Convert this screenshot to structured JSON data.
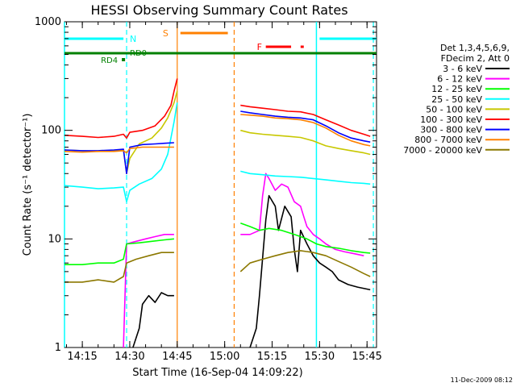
{
  "chart_data": {
    "type": "line",
    "title": "HESSI Observing Summary Count Rates",
    "xlabel": "Start Time (16-Sep-04 14:09:22)",
    "ylabel": "Count Rate (s⁻¹ detector⁻¹)",
    "y_scale": "log",
    "ylim": [
      1,
      1000
    ],
    "xlim_minutes": [
      "14:09:22",
      "15:48:00"
    ],
    "x_ticks": [
      "14:15",
      "14:30",
      "14:45",
      "15:00",
      "15:15",
      "15:30",
      "15:45"
    ],
    "y_ticks": [
      "1",
      "10",
      "100",
      "1000"
    ],
    "grid": false,
    "legend_position": "right",
    "legend_header": [
      "Det 1,3,4,5,6,9,",
      "FDecim 2, Att 0"
    ],
    "timestamp": "11-Dec-2009 08:12",
    "flags": {
      "N": {
        "label": "N",
        "color": "#00ffff"
      },
      "S": {
        "label": "S",
        "color": "#ff8000",
        "start": "14:46",
        "end": "15:01"
      },
      "F": {
        "label": "F",
        "color": "#ff0000"
      },
      "RD4": {
        "label": "RD4",
        "color": "#008000"
      },
      "RD0": {
        "label": "RD0",
        "color": "#008000"
      }
    },
    "series": [
      {
        "name": "3 - 6 keV",
        "color": "#000000",
        "points": [
          [
            "14:31",
            1
          ],
          [
            "14:33",
            1.5
          ],
          [
            "14:34",
            2.5
          ],
          [
            "14:36",
            3
          ],
          [
            "14:38",
            2.6
          ],
          [
            "14:40",
            3.2
          ],
          [
            "14:42",
            3
          ],
          [
            "14:44",
            3
          ],
          null,
          [
            "15:08",
            1
          ],
          [
            "15:10",
            1.5
          ],
          [
            "15:11",
            3
          ],
          [
            "15:13",
            15
          ],
          [
            "15:14",
            25
          ],
          [
            "15:16",
            20
          ],
          [
            "15:17",
            12
          ],
          [
            "15:19",
            20
          ],
          [
            "15:21",
            16
          ],
          [
            "15:22",
            8
          ],
          [
            "15:23",
            5
          ],
          [
            "15:24",
            12
          ],
          [
            "15:26",
            9
          ],
          [
            "15:28",
            7
          ],
          [
            "15:30",
            6
          ],
          [
            "15:32",
            5.5
          ],
          [
            "15:34",
            5
          ],
          [
            "15:36",
            4.2
          ],
          [
            "15:39",
            3.8
          ],
          [
            "15:42",
            3.6
          ],
          [
            "15:46",
            3.4
          ]
        ]
      },
      {
        "name": "6 - 12 keV",
        "color": "#ff00ff",
        "points": [
          [
            "14:28",
            1
          ],
          [
            "14:29",
            9
          ],
          [
            "14:32",
            9.5
          ],
          [
            "14:35",
            10
          ],
          [
            "14:38",
            10.5
          ],
          [
            "14:41",
            11
          ],
          [
            "14:44",
            11
          ],
          null,
          [
            "15:05",
            11
          ],
          [
            "15:08",
            11
          ],
          [
            "15:11",
            12
          ],
          [
            "15:12",
            25
          ],
          [
            "15:13",
            40
          ],
          [
            "15:14",
            36
          ],
          [
            "15:16",
            28
          ],
          [
            "15:18",
            32
          ],
          [
            "15:20",
            30
          ],
          [
            "15:22",
            22
          ],
          [
            "15:24",
            20
          ],
          [
            "15:25",
            16
          ],
          [
            "15:26",
            13
          ],
          [
            "15:28",
            11
          ],
          [
            "15:30",
            10
          ],
          [
            "15:32",
            9
          ],
          [
            "15:35",
            8
          ],
          [
            "15:38",
            7.6
          ],
          [
            "15:41",
            7.3
          ],
          [
            "15:44",
            7
          ]
        ]
      },
      {
        "name": "12 - 25 keV",
        "color": "#00ff00",
        "points": [
          [
            "14:09:22",
            5.8
          ],
          [
            "14:15",
            5.8
          ],
          [
            "14:20",
            6
          ],
          [
            "14:25",
            6
          ],
          [
            "14:28",
            6.5
          ],
          [
            "14:29",
            9
          ],
          [
            "14:33",
            9.2
          ],
          [
            "14:37",
            9.5
          ],
          [
            "14:41",
            9.8
          ],
          [
            "14:44",
            10
          ],
          null,
          [
            "15:05",
            14
          ],
          [
            "15:08",
            13
          ],
          [
            "15:11",
            12
          ],
          [
            "15:14",
            12.5
          ],
          [
            "15:18",
            12
          ],
          [
            "15:22",
            11
          ],
          [
            "15:26",
            10
          ],
          [
            "15:29",
            9
          ],
          [
            "15:32",
            8.5
          ],
          [
            "15:36",
            8.2
          ],
          [
            "15:40",
            7.8
          ],
          [
            "15:44",
            7.5
          ],
          [
            "15:46",
            7.4
          ]
        ]
      },
      {
        "name": "25 - 50 keV",
        "color": "#00ffff",
        "points": [
          [
            "14:09:22",
            31
          ],
          [
            "14:15",
            30
          ],
          [
            "14:20",
            29
          ],
          [
            "14:25",
            29.5
          ],
          [
            "14:28",
            30
          ],
          [
            "14:29",
            22
          ],
          [
            "14:30",
            28
          ],
          [
            "14:33",
            32
          ],
          [
            "14:37",
            36
          ],
          [
            "14:40",
            44
          ],
          [
            "14:42",
            60
          ],
          [
            "14:43",
            85
          ],
          [
            "14:44",
            120
          ],
          [
            "14:45",
            180
          ],
          null,
          [
            "15:05",
            42
          ],
          [
            "15:08",
            40
          ],
          [
            "15:12",
            39
          ],
          [
            "15:16",
            38
          ],
          [
            "15:20",
            37.5
          ],
          [
            "15:24",
            37
          ],
          [
            "15:28",
            36
          ],
          [
            "15:32",
            35
          ],
          [
            "15:36",
            34
          ],
          [
            "15:40",
            33
          ],
          [
            "15:44",
            32.5
          ],
          [
            "15:46",
            32
          ]
        ]
      },
      {
        "name": "50 - 100 keV",
        "color": "#c8c800",
        "points": [
          [
            "14:09:22",
            66
          ],
          [
            "14:15",
            65
          ],
          [
            "14:20",
            64
          ],
          [
            "14:25",
            65
          ],
          [
            "14:28",
            66
          ],
          [
            "14:29",
            40
          ],
          [
            "14:30",
            55
          ],
          [
            "14:33",
            75
          ],
          [
            "14:37",
            85
          ],
          [
            "14:40",
            105
          ],
          [
            "14:42",
            130
          ],
          [
            "14:44",
            180
          ],
          [
            "14:45",
            230
          ],
          null,
          [
            "15:05",
            100
          ],
          [
            "15:08",
            95
          ],
          [
            "15:12",
            92
          ],
          [
            "15:16",
            90
          ],
          [
            "15:20",
            88
          ],
          [
            "15:24",
            86
          ],
          [
            "15:28",
            80
          ],
          [
            "15:32",
            72
          ],
          [
            "15:36",
            68
          ],
          [
            "15:40",
            65
          ],
          [
            "15:44",
            62
          ],
          [
            "15:46",
            60
          ]
        ]
      },
      {
        "name": "100 - 300 keV",
        "color": "#ff0000",
        "points": [
          [
            "14:09:22",
            90
          ],
          [
            "14:15",
            88
          ],
          [
            "14:20",
            86
          ],
          [
            "14:25",
            88
          ],
          [
            "14:28",
            92
          ],
          [
            "14:29",
            85
          ],
          [
            "14:30",
            96
          ],
          [
            "14:34",
            100
          ],
          [
            "14:38",
            110
          ],
          [
            "14:41",
            135
          ],
          [
            "14:43",
            170
          ],
          [
            "14:44",
            230
          ],
          [
            "14:45",
            300
          ],
          null,
          [
            "15:05",
            170
          ],
          [
            "15:08",
            165
          ],
          [
            "15:12",
            160
          ],
          [
            "15:16",
            155
          ],
          [
            "15:20",
            150
          ],
          [
            "15:24",
            148
          ],
          [
            "15:28",
            140
          ],
          [
            "15:32",
            125
          ],
          [
            "15:36",
            112
          ],
          [
            "15:40",
            100
          ],
          [
            "15:44",
            92
          ],
          [
            "15:46",
            88
          ]
        ]
      },
      {
        "name": "300 - 800 keV",
        "color": "#0000ff",
        "points": [
          [
            "14:09:22",
            66
          ],
          [
            "14:15",
            65
          ],
          [
            "14:20",
            65
          ],
          [
            "14:25",
            66
          ],
          [
            "14:28",
            67
          ],
          [
            "14:29",
            40
          ],
          [
            "14:30",
            70
          ],
          [
            "14:34",
            74
          ],
          [
            "14:38",
            75
          ],
          [
            "14:41",
            76
          ],
          [
            "14:44",
            77
          ],
          null,
          [
            "15:05",
            150
          ],
          [
            "15:08",
            145
          ],
          [
            "15:12",
            140
          ],
          [
            "15:16",
            135
          ],
          [
            "15:20",
            132
          ],
          [
            "15:24",
            130
          ],
          [
            "15:28",
            125
          ],
          [
            "15:32",
            110
          ],
          [
            "15:36",
            95
          ],
          [
            "15:40",
            85
          ],
          [
            "15:44",
            80
          ],
          [
            "15:46",
            78
          ]
        ]
      },
      {
        "name": "800 - 7000 keV",
        "color": "#ff8000",
        "points": [
          [
            "14:09:22",
            64
          ],
          [
            "14:15",
            63
          ],
          [
            "14:20",
            64
          ],
          [
            "14:25",
            64
          ],
          [
            "14:28",
            65
          ],
          [
            "14:29",
            62
          ],
          [
            "14:30",
            68
          ],
          [
            "14:34",
            70
          ],
          [
            "14:38",
            70
          ],
          [
            "14:41",
            70
          ],
          [
            "14:44",
            70
          ],
          null,
          [
            "15:05",
            140
          ],
          [
            "15:08",
            138
          ],
          [
            "15:12",
            135
          ],
          [
            "15:16",
            130
          ],
          [
            "15:20",
            128
          ],
          [
            "15:24",
            125
          ],
          [
            "15:28",
            118
          ],
          [
            "15:32",
            105
          ],
          [
            "15:36",
            90
          ],
          [
            "15:40",
            80
          ],
          [
            "15:44",
            74
          ],
          [
            "15:46",
            72
          ]
        ]
      },
      {
        "name": "7000 - 20000 keV",
        "color": "#8c7800",
        "points": [
          [
            "14:09:22",
            4
          ],
          [
            "14:15",
            4
          ],
          [
            "14:20",
            4.2
          ],
          [
            "14:25",
            4
          ],
          [
            "14:28",
            4.5
          ],
          [
            "14:29",
            6
          ],
          [
            "14:32",
            6.5
          ],
          [
            "14:36",
            7
          ],
          [
            "14:40",
            7.5
          ],
          [
            "14:44",
            7.5
          ],
          null,
          [
            "15:05",
            5
          ],
          [
            "15:08",
            6
          ],
          [
            "15:12",
            6.5
          ],
          [
            "15:16",
            7
          ],
          [
            "15:20",
            7.5
          ],
          [
            "15:24",
            7.8
          ],
          [
            "15:28",
            7.5
          ],
          [
            "15:32",
            7
          ],
          [
            "15:36",
            6.2
          ],
          [
            "15:40",
            5.5
          ],
          [
            "15:44",
            4.8
          ],
          [
            "15:46",
            4.5
          ]
        ]
      }
    ],
    "markers": {
      "cyan_solid": [
        "14:09:22",
        "15:29"
      ],
      "cyan_dashed": [
        "14:29",
        "15:47"
      ],
      "orange_solid": [
        "14:45"
      ],
      "orange_dashed": [
        "15:03"
      ]
    }
  }
}
